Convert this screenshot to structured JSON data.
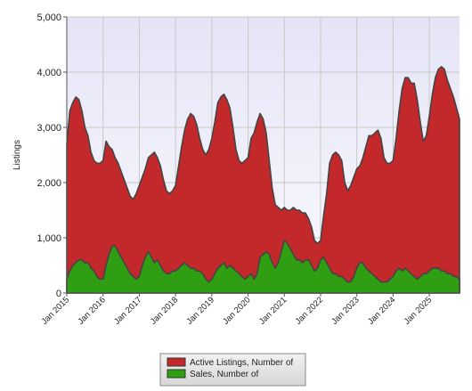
{
  "chart_data": {
    "type": "area",
    "y_label": "Listings",
    "ylim": [
      0,
      5000
    ],
    "yticks": [
      {
        "value": 0,
        "label": "0"
      },
      {
        "value": 1000,
        "label": "1,000"
      },
      {
        "value": 2000,
        "label": "2,000"
      },
      {
        "value": 3000,
        "label": "3,000"
      },
      {
        "value": 4000,
        "label": "4,000"
      },
      {
        "value": 5000,
        "label": "5,000"
      }
    ],
    "grid": true,
    "legend": "bottom",
    "categories": [
      "Jan 2015",
      null,
      null,
      null,
      null,
      null,
      null,
      null,
      null,
      null,
      null,
      null,
      "Jan 2016",
      null,
      null,
      null,
      null,
      null,
      null,
      null,
      null,
      null,
      null,
      null,
      "Jan 2017",
      null,
      null,
      null,
      null,
      null,
      null,
      null,
      null,
      null,
      null,
      null,
      "Jan 2018",
      null,
      null,
      null,
      null,
      null,
      null,
      null,
      null,
      null,
      null,
      null,
      "Jan 2019",
      null,
      null,
      null,
      null,
      null,
      null,
      null,
      null,
      null,
      null,
      null,
      "Jan 2020",
      null,
      null,
      null,
      null,
      null,
      null,
      null,
      null,
      null,
      null,
      null,
      "Jan 2021",
      null,
      null,
      null,
      null,
      null,
      null,
      null,
      null,
      null,
      null,
      null,
      "Jan 2022",
      null,
      null,
      null,
      null,
      null,
      null,
      null,
      null,
      null,
      null,
      null,
      "Jan 2023",
      null,
      null,
      null,
      null,
      null,
      null,
      null,
      null,
      null,
      null,
      null,
      "Jan 2024",
      null,
      null,
      null,
      null,
      null,
      null,
      null,
      null,
      null,
      null,
      null,
      "Jan 2025",
      null,
      null,
      null,
      null,
      null,
      null,
      null,
      null,
      null,
      null
    ],
    "series": [
      {
        "name": "Active Listings, Number of",
        "color": "#c3282b",
        "values": [
          2700,
          3300,
          3450,
          3550,
          3500,
          3300,
          3000,
          2850,
          2550,
          2400,
          2350,
          2350,
          2400,
          2750,
          2650,
          2600,
          2450,
          2350,
          2200,
          2050,
          1900,
          1750,
          1700,
          1800,
          1950,
          2100,
          2250,
          2450,
          2500,
          2550,
          2450,
          2300,
          2050,
          1850,
          1800,
          1850,
          1950,
          2300,
          2650,
          2950,
          3150,
          3250,
          3200,
          3050,
          2800,
          2600,
          2500,
          2600,
          2800,
          3100,
          3450,
          3550,
          3600,
          3500,
          3350,
          3000,
          2600,
          2400,
          2350,
          2400,
          2450,
          2800,
          2900,
          3100,
          3250,
          3150,
          2900,
          2400,
          1900,
          1600,
          1550,
          1500,
          1550,
          1500,
          1500,
          1550,
          1500,
          1500,
          1450,
          1450,
          1350,
          1200,
          950,
          900,
          950,
          1400,
          1800,
          2350,
          2500,
          2550,
          2500,
          2400,
          2000,
          1850,
          1950,
          2100,
          2250,
          2300,
          2450,
          2650,
          2850,
          2850,
          2900,
          2950,
          2800,
          2450,
          2350,
          2350,
          2400,
          2800,
          3300,
          3700,
          3900,
          3900,
          3800,
          3800,
          3500,
          3100,
          2750,
          2850,
          3200,
          3600,
          3900,
          4050,
          4100,
          4050,
          3850,
          3700,
          3550,
          3350,
          3150
        ]
      },
      {
        "name": "Sales, Number of",
        "color": "#2f9e12",
        "values": [
          250,
          400,
          500,
          550,
          600,
          600,
          550,
          550,
          450,
          400,
          300,
          250,
          250,
          500,
          700,
          850,
          850,
          750,
          650,
          550,
          450,
          350,
          300,
          250,
          300,
          500,
          650,
          750,
          650,
          550,
          600,
          500,
          400,
          350,
          350,
          400,
          400,
          450,
          500,
          550,
          500,
          450,
          450,
          400,
          400,
          350,
          250,
          200,
          250,
          350,
          450,
          500,
          550,
          450,
          500,
          450,
          400,
          350,
          300,
          250,
          300,
          350,
          250,
          350,
          650,
          700,
          750,
          700,
          550,
          450,
          550,
          750,
          950,
          900,
          800,
          700,
          600,
          600,
          550,
          600,
          600,
          500,
          400,
          450,
          600,
          650,
          550,
          450,
          350,
          350,
          300,
          300,
          250,
          200,
          200,
          300,
          450,
          550,
          550,
          450,
          400,
          350,
          300,
          250,
          200,
          200,
          200,
          250,
          300,
          400,
          450,
          400,
          450,
          400,
          350,
          300,
          250,
          300,
          350,
          350,
          400,
          450,
          450,
          450,
          400,
          400,
          350,
          350,
          300,
          300,
          250
        ]
      }
    ]
  }
}
